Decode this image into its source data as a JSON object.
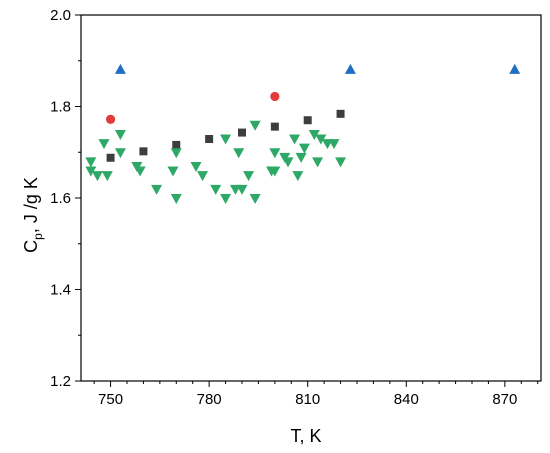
{
  "chart_data": {
    "type": "scatter",
    "xlabel": "T, K",
    "ylabel_main": "C",
    "ylabel_sub": "p",
    "ylabel_rest": ", J /g K",
    "xlim": [
      741,
      881
    ],
    "ylim": [
      1.2,
      2.0
    ],
    "x_ticks": [
      750,
      780,
      810,
      840,
      870
    ],
    "x_tick_labels": [
      "750",
      "780",
      "810",
      "840",
      "870"
    ],
    "y_ticks": [
      1.2,
      1.4,
      1.6,
      1.8,
      2.0
    ],
    "y_tick_labels": [
      "1.2",
      "1.4",
      "1.6",
      "1.8",
      "2.0"
    ],
    "grid": false,
    "series": [
      {
        "marker": "triangle-up",
        "color": "#1f6fc5",
        "points": [
          [
            753,
            1.88
          ],
          [
            823,
            1.88
          ],
          [
            873,
            1.88
          ]
        ]
      },
      {
        "marker": "circle",
        "color": "#e03c3c",
        "points": [
          [
            750,
            1.772
          ],
          [
            800,
            1.822
          ]
        ]
      },
      {
        "marker": "square",
        "color": "#3d3d3d",
        "points": [
          [
            750,
            1.688
          ],
          [
            760,
            1.702
          ],
          [
            770,
            1.716
          ],
          [
            780,
            1.729
          ],
          [
            790,
            1.743
          ],
          [
            800,
            1.756
          ],
          [
            810,
            1.77
          ],
          [
            820,
            1.784
          ]
        ]
      },
      {
        "marker": "triangle-down",
        "color": "#2ea866",
        "points": [
          [
            744,
            1.68
          ],
          [
            744,
            1.66
          ],
          [
            746,
            1.65
          ],
          [
            748,
            1.72
          ],
          [
            749,
            1.65
          ],
          [
            753,
            1.74
          ],
          [
            753,
            1.7
          ],
          [
            758,
            1.67
          ],
          [
            759,
            1.66
          ],
          [
            764,
            1.62
          ],
          [
            769,
            1.66
          ],
          [
            770,
            1.7
          ],
          [
            770,
            1.6
          ],
          [
            776,
            1.67
          ],
          [
            778,
            1.65
          ],
          [
            782,
            1.62
          ],
          [
            785,
            1.73
          ],
          [
            785,
            1.6
          ],
          [
            788,
            1.62
          ],
          [
            789,
            1.7
          ],
          [
            790,
            1.62
          ],
          [
            792,
            1.65
          ],
          [
            794,
            1.6
          ],
          [
            794,
            1.76
          ],
          [
            799,
            1.66
          ],
          [
            800,
            1.7
          ],
          [
            800,
            1.66
          ],
          [
            803,
            1.69
          ],
          [
            804,
            1.68
          ],
          [
            806,
            1.73
          ],
          [
            807,
            1.65
          ],
          [
            808,
            1.69
          ],
          [
            809,
            1.71
          ],
          [
            812,
            1.74
          ],
          [
            813,
            1.68
          ],
          [
            814,
            1.73
          ],
          [
            816,
            1.72
          ],
          [
            818,
            1.72
          ],
          [
            820,
            1.68
          ]
        ]
      }
    ]
  }
}
